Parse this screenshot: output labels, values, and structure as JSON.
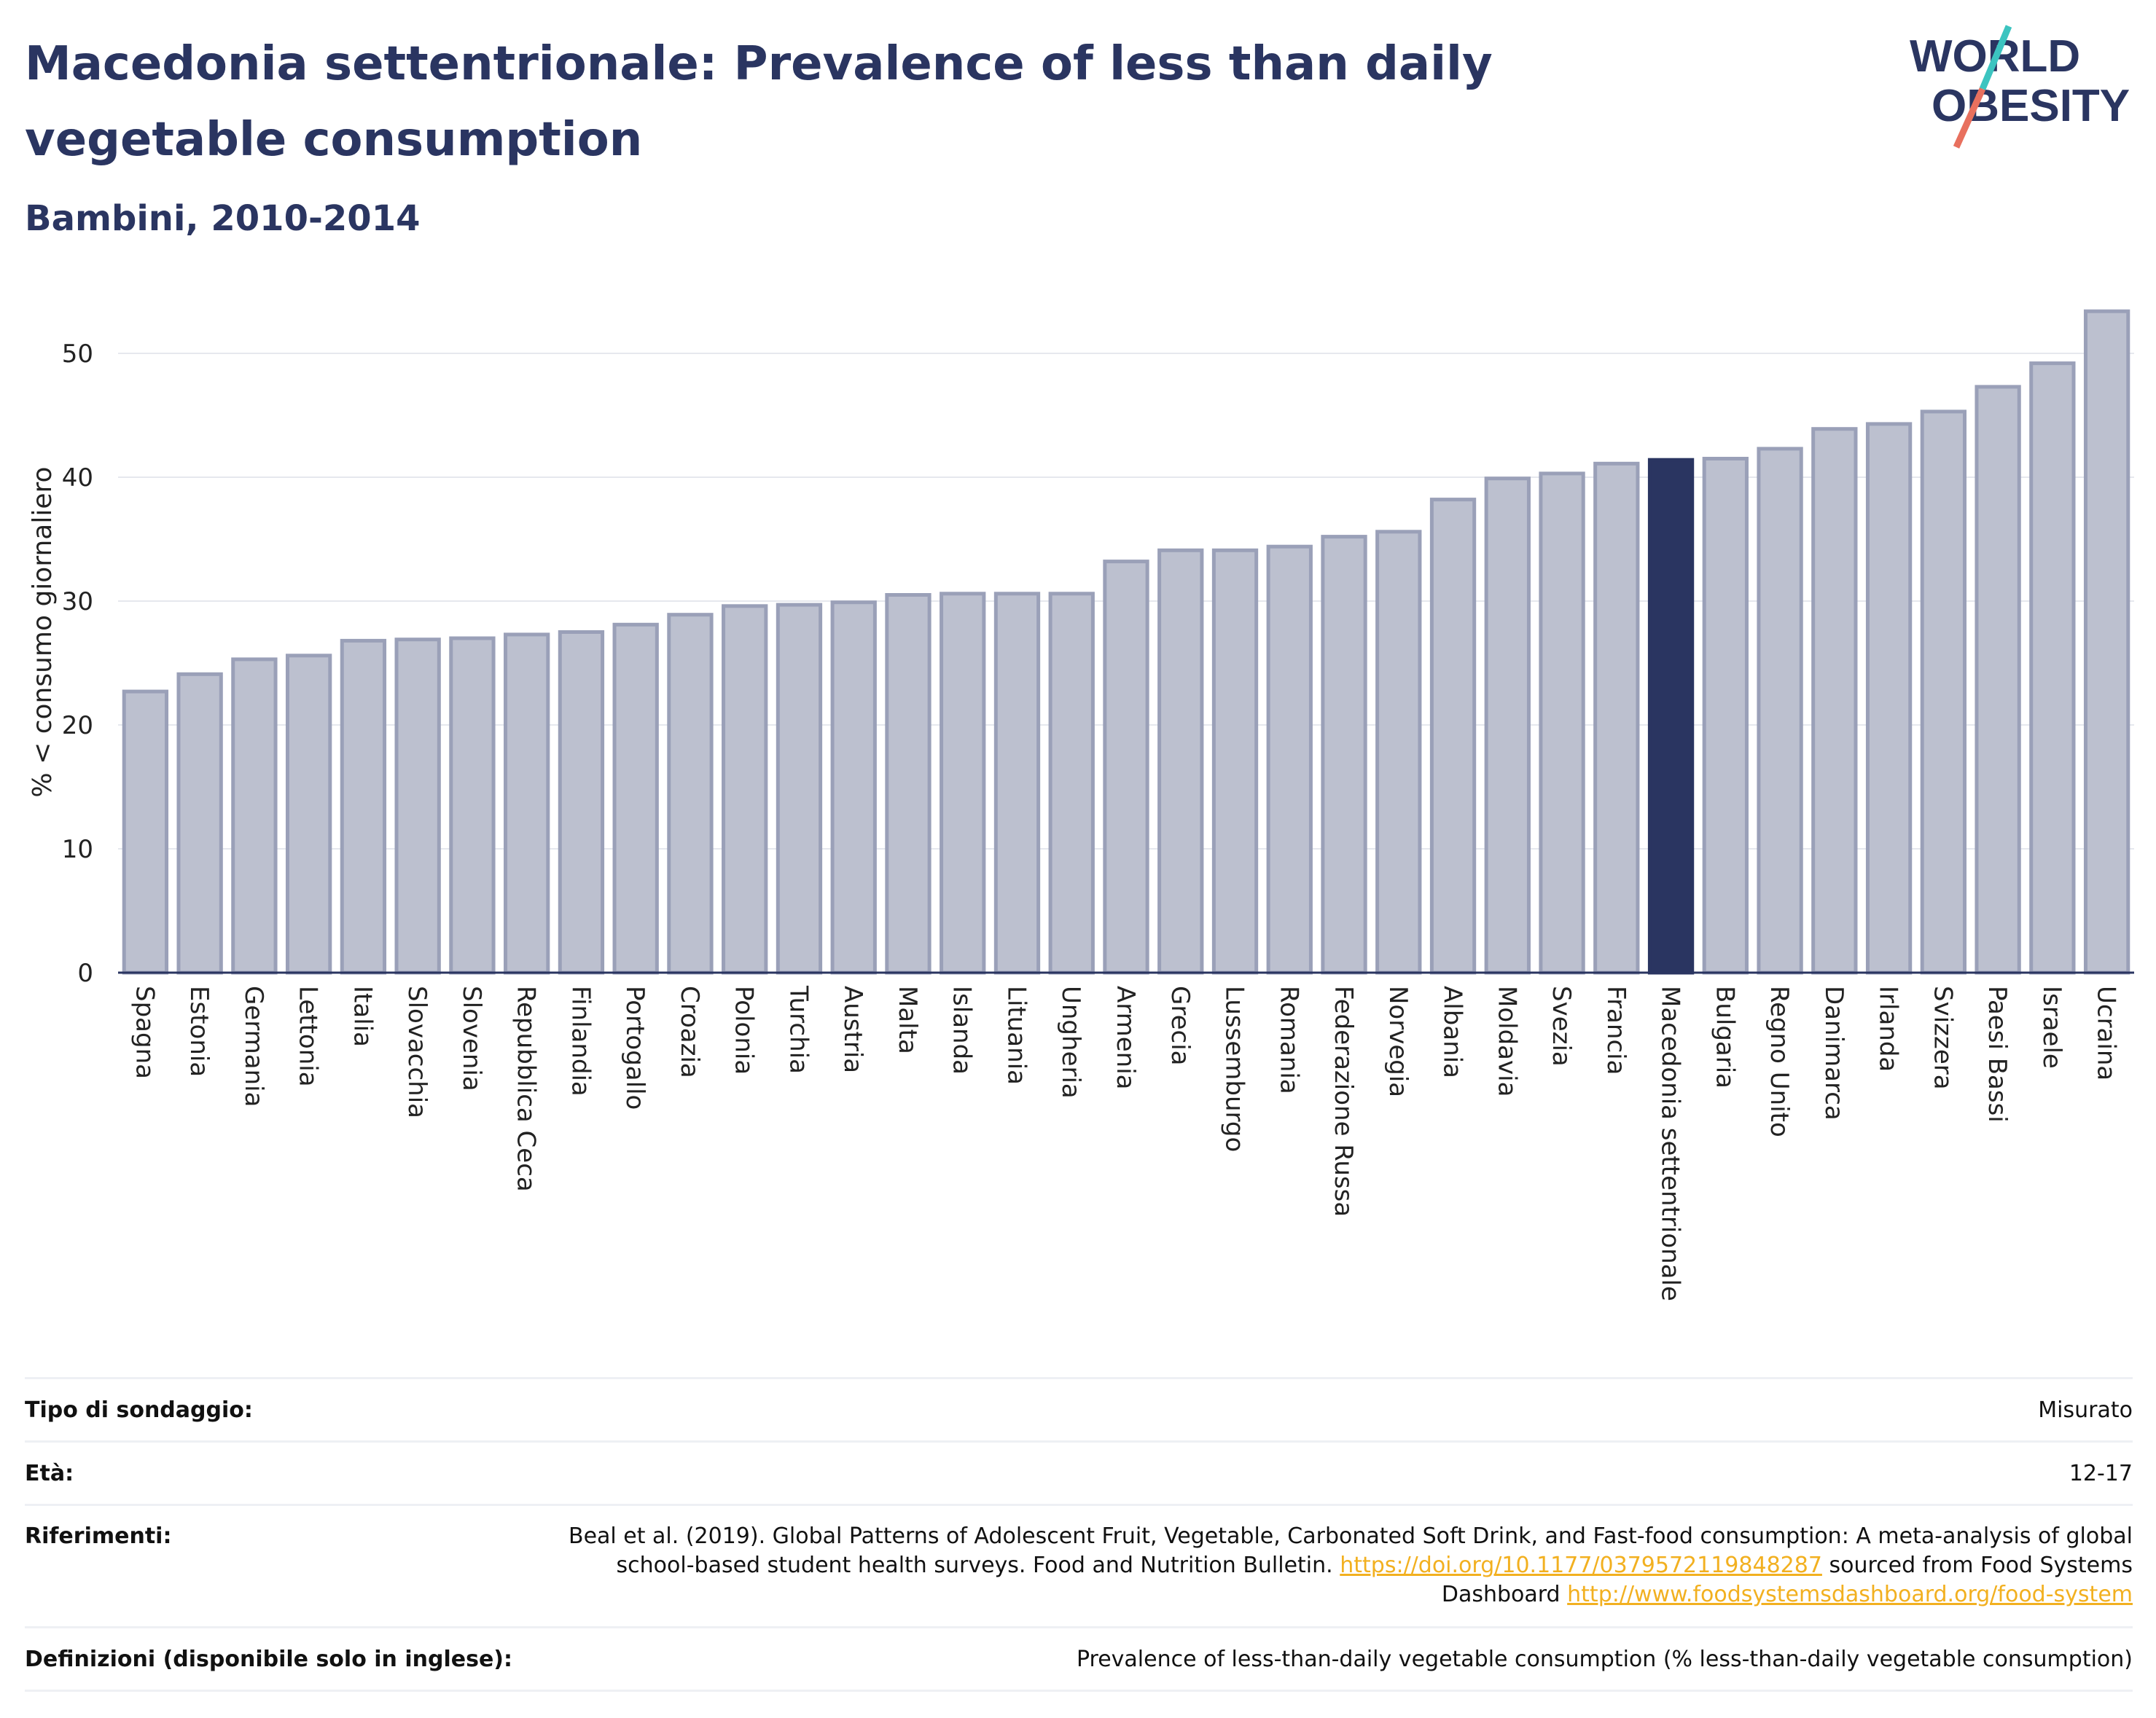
{
  "header": {
    "title": "Macedonia settentrionale: Prevalence of less than daily vegetable consumption",
    "subtitle": "Bambini, 2010-2014"
  },
  "logo": {
    "line1": "WORLD",
    "line2": "OBESITY",
    "accent_teal": "#3cc4c0",
    "accent_red": "#e8705e"
  },
  "colors": {
    "bar": "#bcc0cf",
    "bar_stroke": "#9aa0b8",
    "highlight": "#2a3561",
    "grid": "#e6e8ee",
    "text": "#2a3561"
  },
  "chart_data": {
    "type": "bar",
    "ylabel": "% < consumo giornaliero",
    "ylim": [
      0,
      55
    ],
    "yticks": [
      0,
      10,
      20,
      30,
      40,
      50
    ],
    "highlight": "Macedonia settentrionale",
    "categories": [
      "Spagna",
      "Estonia",
      "Germania",
      "Lettonia",
      "Italia",
      "Slovacchia",
      "Slovenia",
      "Repubblica Ceca",
      "Finlandia",
      "Portogallo",
      "Croazia",
      "Polonia",
      "Turchia",
      "Austria",
      "Malta",
      "Islanda",
      "Lituania",
      "Ungheria",
      "Armenia",
      "Grecia",
      "Lussemburgo",
      "Romania",
      "Federazione Russa",
      "Norvegia",
      "Albania",
      "Moldavia",
      "Svezia",
      "Francia",
      "Macedonia settentrionale",
      "Bulgaria",
      "Regno Unito",
      "Danimarca",
      "Irlanda",
      "Svizzera",
      "Paesi Bassi",
      "Israele",
      "Ucraina"
    ],
    "values": [
      22.7,
      24.1,
      25.3,
      25.6,
      26.8,
      26.9,
      27.0,
      27.3,
      27.5,
      28.1,
      28.9,
      29.6,
      29.7,
      29.9,
      30.5,
      30.6,
      30.6,
      30.6,
      33.2,
      34.1,
      34.1,
      34.4,
      35.2,
      35.6,
      38.2,
      39.9,
      40.3,
      41.1,
      41.4,
      41.5,
      42.3,
      43.9,
      44.3,
      45.3,
      47.3,
      49.2,
      53.4
    ]
  },
  "info": {
    "survey_label": "Tipo di sondaggio:",
    "survey_value": "Misurato",
    "age_label": "Età:",
    "age_value": "12-17",
    "refs_label": "Riferimenti:",
    "refs_text_1": "Beal et al. (2019). Global Patterns of Adolescent Fruit, Vegetable, Carbonated Soft Drink, and Fast-food consumption: A meta-analysis of global school-based student health surveys. Food and Nutrition Bulletin.",
    "refs_link_1": "https://doi.org/10.1177/0379572119848287",
    "refs_text_2": "sourced from Food Systems Dashboard",
    "refs_link_2": "http://www.foodsystemsdashboard.org/food-system",
    "def_label": "Definizioni (disponibile solo in inglese):",
    "def_value": "Prevalence of less-than-daily vegetable consumption (% less-than-daily vegetable consumption)"
  }
}
